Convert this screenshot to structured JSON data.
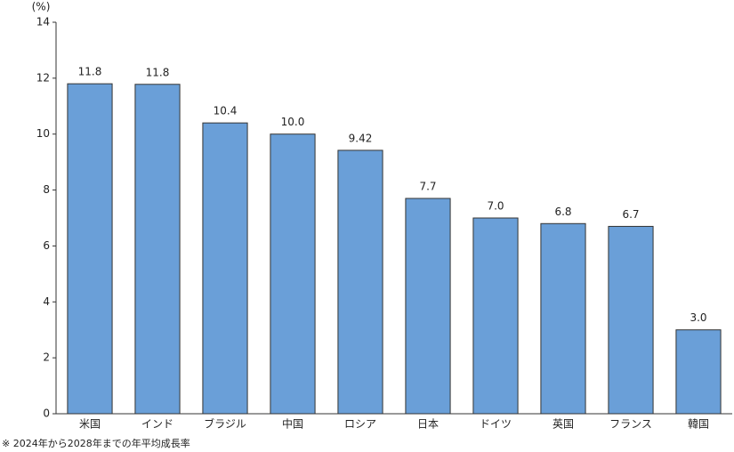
{
  "chart_data": {
    "type": "bar",
    "y_unit": "(%)",
    "categories": [
      "米国",
      "インド",
      "ブラジル",
      "中国",
      "ロシア",
      "日本",
      "ドイツ",
      "英国",
      "フランス",
      "韓国"
    ],
    "values": [
      11.8,
      11.78,
      10.4,
      10.0,
      9.42,
      7.7,
      7.0,
      6.8,
      6.7,
      3.0
    ],
    "value_labels": [
      "11.8",
      "11.8",
      "10.4",
      "10.0",
      "9.42",
      "7.7",
      "7.0",
      "6.8",
      "6.7",
      "3.0"
    ],
    "color": "#6a9fd8",
    "ylim": [
      0,
      14
    ],
    "yticks": [
      0,
      2,
      4,
      6,
      8,
      10,
      12,
      14
    ],
    "grid": false,
    "footnote": "※ 2024年から2028年までの年平均成長率"
  }
}
